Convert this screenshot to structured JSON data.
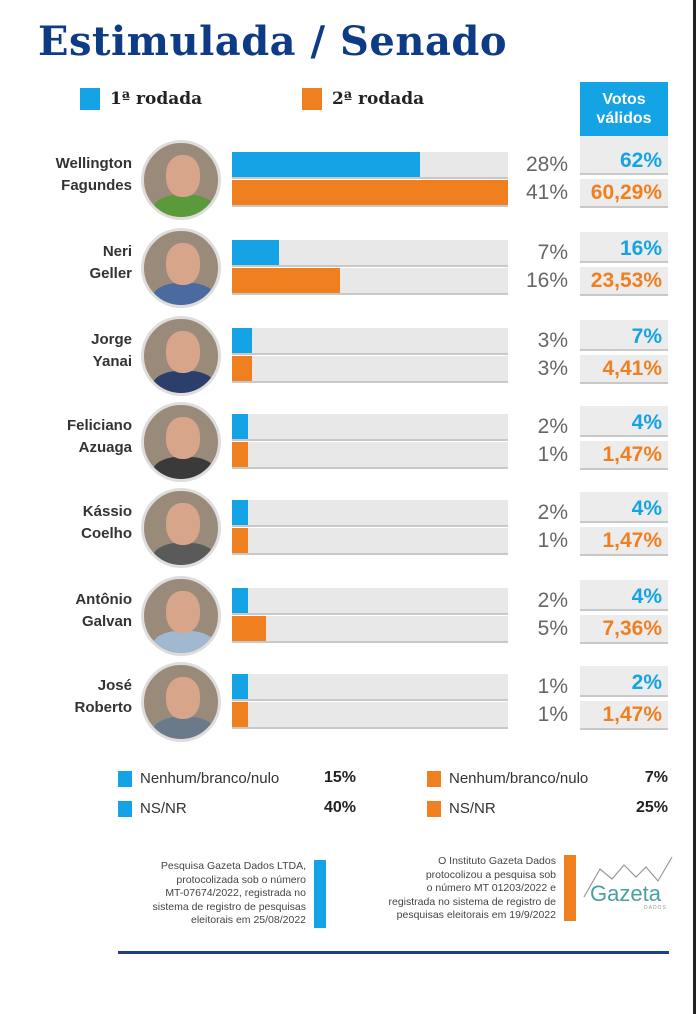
{
  "title": "Estimulada / Senado",
  "legend": {
    "round1": {
      "label": "1ª rodada",
      "color": "#14a4e6"
    },
    "round2": {
      "label": "2ª rodada",
      "color": "#f07f1f"
    }
  },
  "valid_votes_header": "Votos válidos",
  "chart_data": {
    "type": "bar",
    "title": "Estimulada / Senado",
    "orientation": "horizontal",
    "xlabel": "",
    "ylabel": "",
    "xlim": [
      0,
      41
    ],
    "categories": [
      "Wellington Fagundes",
      "Neri Geller",
      "Jorge Yanai",
      "Feliciano Azuaga",
      "Kássio Coelho",
      "Antônio Galvan",
      "José Roberto"
    ],
    "series": [
      {
        "name": "1ª rodada",
        "color": "#14a4e6",
        "values": [
          28,
          7,
          3,
          2,
          2,
          2,
          1
        ],
        "labels": [
          "28%",
          "7%",
          "3%",
          "2%",
          "2%",
          "2%",
          "1%"
        ],
        "valid_votes": [
          "62%",
          "16%",
          "7%",
          "4%",
          "4%",
          "4%",
          "2%"
        ]
      },
      {
        "name": "2ª rodada",
        "color": "#f07f1f",
        "values": [
          41,
          16,
          3,
          1,
          1,
          5,
          1
        ],
        "labels": [
          "41%",
          "16%",
          "3%",
          "1%",
          "1%",
          "5%",
          "1%"
        ],
        "valid_votes": [
          "60,29%",
          "23,53%",
          "4,41%",
          "1,47%",
          "1,47%",
          "7,36%",
          "1,47%"
        ]
      }
    ]
  },
  "candidates": [
    {
      "first": "Wellington",
      "last": "Fagundes",
      "shirt": "#5a9a3a"
    },
    {
      "first": "Neri",
      "last": "Geller",
      "shirt": "#4a6aa0"
    },
    {
      "first": "Jorge",
      "last": "Yanai",
      "shirt": "#2c3e6a"
    },
    {
      "first": "Feliciano",
      "last": "Azuaga",
      "shirt": "#3a3a3a"
    },
    {
      "first": "Kássio",
      "last": "Coelho",
      "shirt": "#5a5a5a"
    },
    {
      "first": "Antônio",
      "last": "Galvan",
      "shirt": "#a0b8d0"
    },
    {
      "first": "José",
      "last": "Roberto",
      "shirt": "#6a7a8a"
    }
  ],
  "others": {
    "round1": [
      {
        "label": "Nenhum/branco/nulo",
        "value": "15%"
      },
      {
        "label": "NS/NR",
        "value": "40%"
      }
    ],
    "round2": [
      {
        "label": "Nenhum/branco/nulo",
        "value": "7%"
      },
      {
        "label": "NS/NR",
        "value": "25%"
      }
    ]
  },
  "notes": {
    "round1": [
      "Pesquisa Gazeta Dados LTDA,",
      "protocolizada sob o número",
      "MT-07674/2022, registrada no",
      "sistema de registro de pesquisas",
      "eleitorais em 25/08/2022"
    ],
    "round2": [
      "O Instituto Gazeta Dados",
      "protocolizou a pesquisa sob",
      "o número MT 01203/2022 e",
      "registrada no sistema de registro de",
      "pesquisas eleitorais em 19/9/2022"
    ]
  },
  "logo": {
    "text": "Gazeta",
    "sub": "DADOS"
  }
}
